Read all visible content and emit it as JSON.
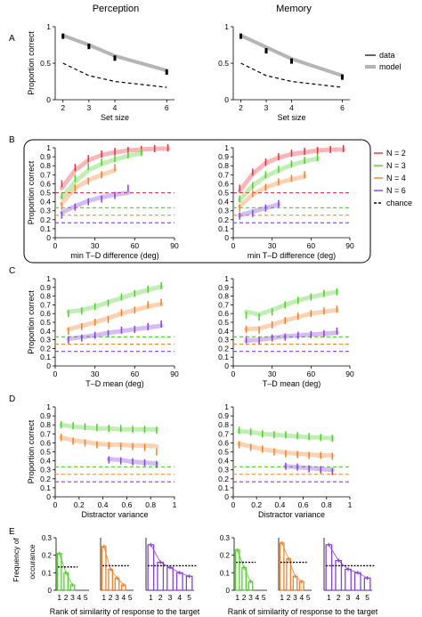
{
  "columns": [
    "Perception",
    "Memory"
  ],
  "colors": {
    "N2": "#e8303a",
    "N3": "#4fcf2a",
    "N4": "#f0802a",
    "N6": "#8a3fe0",
    "model_gray": "#b5b5b5",
    "data_black": "#000000"
  },
  "chart_data": [
    {
      "panel": "A",
      "type": "line",
      "xlabel": "Set size",
      "ylabel": "Proportion correct",
      "xticks": [
        "2",
        "3",
        "4",
        "6"
      ],
      "yticks": [
        "0",
        "0.5",
        "1"
      ],
      "xlim": [
        1.7,
        6.3
      ],
      "ylim": [
        0,
        1
      ],
      "legend": [
        "data",
        "model"
      ],
      "legend_position": "right",
      "plots": [
        {
          "column": "Perception",
          "x": [
            2,
            3,
            4,
            6
          ],
          "data": [
            0.87,
            0.73,
            0.57,
            0.38
          ],
          "model": [
            0.88,
            0.75,
            0.6,
            0.4
          ],
          "chance": [
            0.5,
            0.33,
            0.25,
            0.17
          ]
        },
        {
          "column": "Memory",
          "x": [
            2,
            3,
            4,
            6
          ],
          "data": [
            0.87,
            0.67,
            0.53,
            0.31
          ],
          "model": [
            0.88,
            0.72,
            0.56,
            0.33
          ],
          "chance": [
            0.5,
            0.33,
            0.25,
            0.17
          ]
        }
      ]
    },
    {
      "panel": "B",
      "type": "line",
      "xlabel": "min T–D difference (deg)",
      "ylabel": "Proportion correct",
      "xticks": [
        "0",
        "30",
        "60",
        "90"
      ],
      "yticks": [
        "0",
        "0.1",
        "0.2",
        "0.3",
        "0.4",
        "0.5",
        "0.6",
        "0.7",
        "0.8",
        "0.9",
        "1"
      ],
      "xlim": [
        0,
        90
      ],
      "ylim": [
        0,
        1
      ],
      "legend": [
        {
          "n": "2",
          "color": "#e8303a"
        },
        {
          "n": "3",
          "color": "#4fcf2a"
        },
        {
          "n": "4",
          "color": "#f0802a"
        },
        {
          "n": "6",
          "color": "#8a3fe0"
        },
        {
          "n": "chance",
          "color": "#000000"
        }
      ],
      "legend_prefix": "N = ",
      "legend_position": "right",
      "plots": [
        {
          "column": "Perception",
          "series": [
            {
              "n": "2",
              "x": [
                5,
                15,
                25,
                35,
                45,
                55,
                65,
                75,
                85
              ],
              "data": [
                0.6,
                0.78,
                0.88,
                0.93,
                0.96,
                0.97,
                0.98,
                0.99,
                1.0
              ],
              "model": [
                0.55,
                0.75,
                0.86,
                0.92,
                0.95,
                0.97,
                0.98,
                0.99,
                0.99
              ]
            },
            {
              "n": "3",
              "x": [
                5,
                15,
                25,
                35,
                45,
                55,
                65
              ],
              "data": [
                0.47,
                0.66,
                0.79,
                0.84,
                0.88,
                0.92,
                0.95
              ],
              "model": [
                0.45,
                0.62,
                0.75,
                0.82,
                0.87,
                0.91,
                0.94
              ]
            },
            {
              "n": "4",
              "x": [
                5,
                15,
                25,
                35,
                45
              ],
              "data": [
                0.35,
                0.55,
                0.63,
                0.7,
                0.78
              ],
              "model": [
                0.38,
                0.55,
                0.64,
                0.7,
                0.75
              ]
            },
            {
              "n": "6",
              "x": [
                5,
                15,
                25,
                35,
                45,
                55
              ],
              "data": [
                0.25,
                0.34,
                0.4,
                0.43,
                0.47,
                0.55
              ],
              "model": [
                0.28,
                0.35,
                0.41,
                0.45,
                0.48,
                0.5
              ]
            }
          ]
        },
        {
          "column": "Memory",
          "series": [
            {
              "n": "2",
              "x": [
                5,
                15,
                25,
                35,
                45,
                55,
                65,
                75,
                85
              ],
              "data": [
                0.55,
                0.73,
                0.84,
                0.9,
                0.94,
                0.96,
                0.97,
                0.98,
                0.99
              ],
              "model": [
                0.52,
                0.71,
                0.83,
                0.89,
                0.93,
                0.95,
                0.97,
                0.98,
                0.98
              ]
            },
            {
              "n": "3",
              "x": [
                5,
                15,
                25,
                35,
                45,
                55,
                65
              ],
              "data": [
                0.43,
                0.58,
                0.7,
                0.76,
                0.82,
                0.86,
                0.89
              ],
              "model": [
                0.42,
                0.58,
                0.68,
                0.75,
                0.81,
                0.85,
                0.88
              ]
            },
            {
              "n": "4",
              "x": [
                5,
                15,
                25,
                35,
                45,
                55
              ],
              "data": [
                0.33,
                0.49,
                0.56,
                0.62,
                0.66,
                0.7
              ],
              "model": [
                0.35,
                0.48,
                0.56,
                0.61,
                0.65,
                0.68
              ]
            },
            {
              "n": "6",
              "x": [
                5,
                15,
                25,
                35
              ],
              "data": [
                0.24,
                0.27,
                0.33,
                0.38
              ],
              "model": [
                0.25,
                0.29,
                0.33,
                0.37
              ]
            }
          ]
        }
      ]
    },
    {
      "panel": "C",
      "type": "line",
      "xlabel": "T–D mean (deg)",
      "ylabel": "Proportion correct",
      "xticks": [
        "0",
        "30",
        "60",
        "90"
      ],
      "yticks": [
        "0",
        "0.1",
        "0.2",
        "0.3",
        "0.4",
        "0.5",
        "0.6",
        "0.7",
        "0.8",
        "0.9",
        "1"
      ],
      "xlim": [
        0,
        90
      ],
      "ylim": [
        0,
        1
      ],
      "plots": [
        {
          "column": "Perception",
          "series": [
            {
              "n": "3",
              "x": [
                10,
                20,
                30,
                40,
                50,
                60,
                70,
                80
              ],
              "data": [
                0.6,
                0.63,
                0.68,
                0.72,
                0.79,
                0.83,
                0.88,
                0.92
              ],
              "model": [
                0.62,
                0.64,
                0.68,
                0.73,
                0.78,
                0.83,
                0.87,
                0.91
              ]
            },
            {
              "n": "4",
              "x": [
                10,
                20,
                30,
                40,
                50,
                60,
                70,
                80
              ],
              "data": [
                0.4,
                0.45,
                0.5,
                0.53,
                0.61,
                0.64,
                0.7,
                0.73
              ],
              "model": [
                0.42,
                0.46,
                0.5,
                0.55,
                0.6,
                0.64,
                0.68,
                0.71
              ]
            },
            {
              "n": "6",
              "x": [
                10,
                20,
                30,
                40,
                50,
                60,
                70,
                80
              ],
              "data": [
                0.3,
                0.32,
                0.35,
                0.37,
                0.41,
                0.42,
                0.45,
                0.48
              ],
              "model": [
                0.31,
                0.33,
                0.35,
                0.38,
                0.4,
                0.42,
                0.44,
                0.46
              ]
            }
          ]
        },
        {
          "column": "Memory",
          "series": [
            {
              "n": "3",
              "x": [
                10,
                20,
                30,
                40,
                50,
                60,
                70,
                80
              ],
              "data": [
                0.58,
                0.56,
                0.62,
                0.7,
                0.75,
                0.79,
                0.83,
                0.85
              ],
              "model": [
                0.62,
                0.59,
                0.64,
                0.7,
                0.75,
                0.79,
                0.82,
                0.85
              ]
            },
            {
              "n": "4",
              "x": [
                10,
                20,
                30,
                40,
                50,
                60,
                70,
                80
              ],
              "data": [
                0.42,
                0.41,
                0.47,
                0.52,
                0.57,
                0.6,
                0.63,
                0.65
              ],
              "model": [
                0.42,
                0.43,
                0.47,
                0.52,
                0.56,
                0.6,
                0.62,
                0.64
              ]
            },
            {
              "n": "6",
              "x": [
                10,
                20,
                30,
                40,
                50,
                60,
                70,
                80
              ],
              "data": [
                0.3,
                0.29,
                0.32,
                0.33,
                0.35,
                0.36,
                0.37,
                0.4
              ],
              "model": [
                0.29,
                0.3,
                0.32,
                0.34,
                0.35,
                0.36,
                0.37,
                0.38
              ]
            }
          ]
        }
      ]
    },
    {
      "panel": "D",
      "type": "line",
      "xlabel": "Distractor variance",
      "ylabel": "Proportion correct",
      "xticks": [
        "0",
        "0.2",
        "0.4",
        "0.6",
        "0.8",
        "1"
      ],
      "yticks": [
        "0",
        "0.1",
        "0.2",
        "0.3",
        "0.4",
        "0.5",
        "0.6",
        "0.7",
        "0.8",
        "0.9",
        "1"
      ],
      "xlim": [
        0,
        1
      ],
      "ylim": [
        0,
        1
      ],
      "plots": [
        {
          "column": "Perception",
          "series": [
            {
              "n": "3",
              "x": [
                0.05,
                0.15,
                0.25,
                0.35,
                0.45,
                0.55,
                0.65,
                0.75,
                0.85
              ],
              "data": [
                0.8,
                0.79,
                0.78,
                0.77,
                0.76,
                0.76,
                0.75,
                0.75,
                0.74
              ],
              "model": [
                0.8,
                0.78,
                0.77,
                0.76,
                0.76,
                0.75,
                0.75,
                0.75,
                0.75
              ]
            },
            {
              "n": "4",
              "x": [
                0.05,
                0.15,
                0.25,
                0.35,
                0.45,
                0.55,
                0.65,
                0.75,
                0.85
              ],
              "data": [
                0.66,
                0.62,
                0.6,
                0.58,
                0.57,
                0.56,
                0.56,
                0.55,
                0.5
              ],
              "model": [
                0.66,
                0.63,
                0.61,
                0.59,
                0.58,
                0.58,
                0.57,
                0.57,
                0.56
              ]
            },
            {
              "n": "6",
              "x": [
                0.45,
                0.55,
                0.65,
                0.75,
                0.85
              ],
              "data": [
                0.41,
                0.4,
                0.39,
                0.38,
                0.36
              ],
              "model": [
                0.42,
                0.41,
                0.39,
                0.38,
                0.37
              ]
            }
          ]
        },
        {
          "column": "Memory",
          "series": [
            {
              "n": "3",
              "x": [
                0.05,
                0.15,
                0.25,
                0.35,
                0.45,
                0.55,
                0.65,
                0.75,
                0.85
              ],
              "data": [
                0.74,
                0.72,
                0.7,
                0.69,
                0.69,
                0.68,
                0.67,
                0.66,
                0.65
              ],
              "model": [
                0.73,
                0.72,
                0.7,
                0.69,
                0.68,
                0.67,
                0.66,
                0.66,
                0.65
              ]
            },
            {
              "n": "4",
              "x": [
                0.05,
                0.15,
                0.25,
                0.35,
                0.45,
                0.55,
                0.65,
                0.75,
                0.85
              ],
              "data": [
                0.58,
                0.55,
                0.53,
                0.5,
                0.48,
                0.47,
                0.46,
                0.46,
                0.45
              ],
              "model": [
                0.59,
                0.56,
                0.53,
                0.51,
                0.49,
                0.48,
                0.47,
                0.46,
                0.46
              ]
            },
            {
              "n": "6",
              "x": [
                0.45,
                0.55,
                0.65,
                0.75,
                0.85
              ],
              "data": [
                0.34,
                0.33,
                0.31,
                0.3,
                0.28
              ],
              "model": [
                0.34,
                0.33,
                0.32,
                0.31,
                0.3
              ]
            }
          ]
        }
      ]
    },
    {
      "panel": "E",
      "type": "bar",
      "xlabel": "Rank of similarity of response to the target",
      "ylabel": "Frequency of occurance",
      "yticks": [
        "0",
        "0.1",
        "0.2",
        "0.3"
      ],
      "ylim": [
        0,
        0.3
      ],
      "plots": [
        {
          "column": "Perception",
          "groups": [
            {
              "n": "3",
              "categories": [
                "1",
                "2",
                "3"
              ],
              "values": [
                0.21,
                0.1,
                0.03
              ],
              "chance": 0.133
            },
            {
              "n": "4",
              "categories": [
                "1",
                "2",
                "3",
                "4"
              ],
              "values": [
                0.25,
                0.12,
                0.07,
                0.03
              ],
              "chance": 0.14
            },
            {
              "n": "6",
              "categories": [
                "1",
                "2",
                "3",
                "4",
                "5"
              ],
              "values": [
                0.26,
                0.16,
                0.13,
                0.1,
                0.08
              ],
              "chance": 0.14
            }
          ]
        },
        {
          "column": "Memory",
          "groups": [
            {
              "n": "3",
              "categories": [
                "1",
                "2",
                "3"
              ],
              "values": [
                0.23,
                0.13,
                0.05
              ],
              "chance": 0.16
            },
            {
              "n": "4",
              "categories": [
                "1",
                "2",
                "3",
                "4"
              ],
              "values": [
                0.27,
                0.18,
                0.08,
                0.05
              ],
              "chance": 0.16
            },
            {
              "n": "6",
              "categories": [
                "1",
                "2",
                "3",
                "4",
                "5"
              ],
              "values": [
                0.26,
                0.17,
                0.12,
                0.1,
                0.07
              ],
              "chance": 0.14
            }
          ]
        }
      ]
    }
  ]
}
